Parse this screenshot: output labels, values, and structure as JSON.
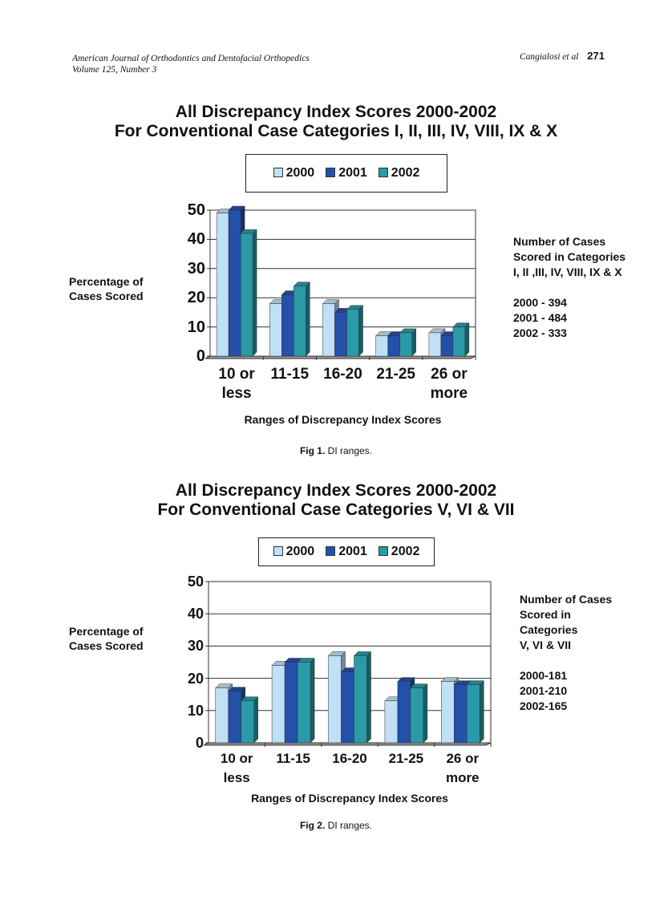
{
  "header": {
    "journal": "American Journal of Orthodontics and Dentofacial Orthopedics",
    "volume": "Volume 125, Number 3",
    "authors": "Cangialosi et al",
    "page": "271"
  },
  "colors": {
    "2000": "#bfe0f5",
    "2001": "#2450a8",
    "2002": "#2a9aa8"
  },
  "figures": [
    {
      "title_line1": "All Discrepancy Index Scores 2000-2002",
      "title_line2": "For Conventional Case Categories I, II, III, IV, VIII, IX & X",
      "ylabel_line1": "Percentage of",
      "ylabel_line2": "Cases Scored",
      "xlabel": "Ranges of Discrepancy Index Scores",
      "caption_label": "Fig 1.",
      "caption_text": " DI ranges.",
      "note": [
        "Number of Cases",
        "Scored in Categories",
        "I, II ,III, IV, VIII, IX & X",
        "",
        "2000 - 394",
        "2001 - 484",
        "2002 - 333"
      ]
    },
    {
      "title_line1": "All Discrepancy Index Scores 2000-2002",
      "title_line2": "For Conventional Case Categories V, VI & VII",
      "ylabel_line1": "Percentage of",
      "ylabel_line2": "Cases Scored",
      "xlabel": "Ranges of Discrepancy Index Scores",
      "caption_label": "Fig 2.",
      "caption_text": " DI ranges.",
      "note": [
        "Number of Cases",
        "Scored in",
        "Categories",
        "V, VI & VII",
        "",
        "2000-181",
        "2001-210",
        "2002-165"
      ]
    }
  ],
  "chart_data": [
    {
      "type": "bar",
      "title": "All Discrepancy Index Scores 2000-2002 For Conventional Case Categories I, II, III, IV, VIII, IX & X",
      "xlabel": "Ranges of Discrepancy Index Scores",
      "ylabel": "Percentage of Cases Scored",
      "categories": [
        [
          "10 or",
          "less"
        ],
        [
          "11-15",
          ""
        ],
        [
          "16-20",
          ""
        ],
        [
          "21-25",
          ""
        ],
        [
          "26 or",
          "more"
        ]
      ],
      "yticks": [
        "0",
        "10",
        "20",
        "30",
        "40",
        "50"
      ],
      "ylim": [
        0,
        50
      ],
      "grid": true,
      "legend": "top",
      "series": [
        {
          "name": "2000",
          "values": [
            49,
            18,
            18,
            7,
            8
          ]
        },
        {
          "name": "2001",
          "values": [
            50,
            21,
            15,
            7,
            7
          ]
        },
        {
          "name": "2002",
          "values": [
            42,
            24,
            16,
            8,
            10
          ]
        }
      ]
    },
    {
      "type": "bar",
      "title": "All Discrepancy Index Scores 2000-2002 For Conventional Case Categories V, VI & VII",
      "xlabel": "Ranges of Discrepancy Index Scores",
      "ylabel": "Percentage of Cases Scored",
      "categories": [
        [
          "10 or",
          "less"
        ],
        [
          "11-15",
          ""
        ],
        [
          "16-20",
          ""
        ],
        [
          "21-25",
          ""
        ],
        [
          "26 or",
          "more"
        ]
      ],
      "yticks": [
        "0",
        "10",
        "20",
        "30",
        "40",
        "50"
      ],
      "ylim": [
        0,
        50
      ],
      "grid": true,
      "legend": "top",
      "series": [
        {
          "name": "2000",
          "values": [
            17,
            24,
            27,
            13,
            19
          ]
        },
        {
          "name": "2001",
          "values": [
            16,
            25,
            22,
            19,
            18
          ]
        },
        {
          "name": "2002",
          "values": [
            13,
            25,
            27,
            17,
            18
          ]
        }
      ]
    }
  ]
}
